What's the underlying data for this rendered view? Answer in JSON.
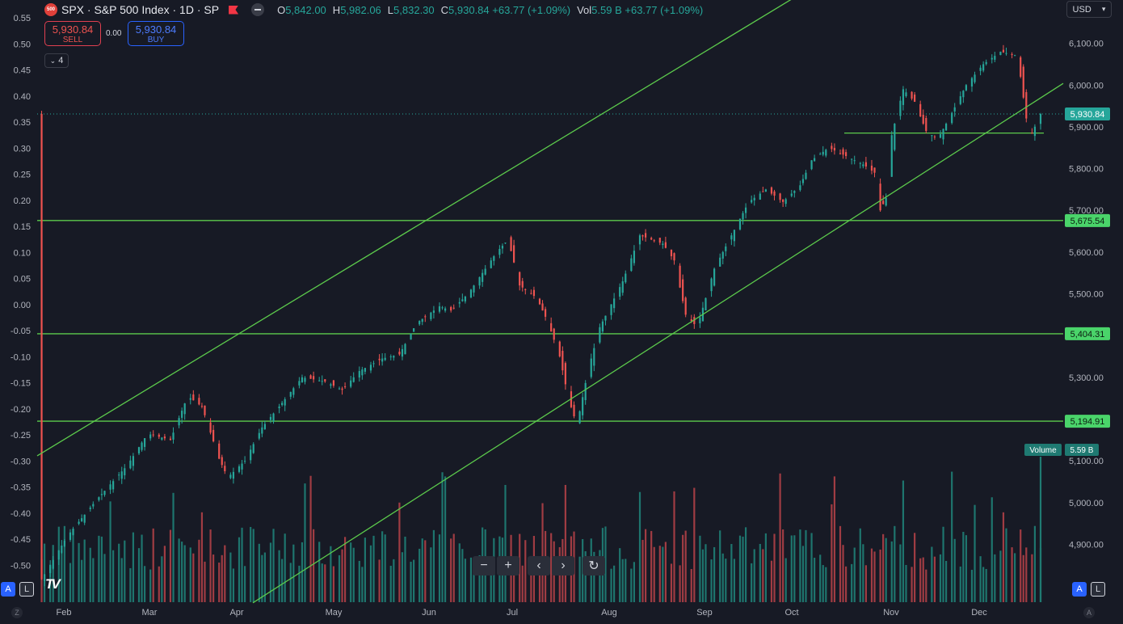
{
  "header": {
    "logo_text": "500",
    "title": "SPX · S&P 500 Index · 1D · SP",
    "ohlc": [
      {
        "label": "O",
        "value": "5,842.00"
      },
      {
        "label": "H",
        "value": "5,982.06"
      },
      {
        "label": "L",
        "value": "5,832.30"
      },
      {
        "label": "C",
        "value": "5,930.84 +63.77 (+1.09%)"
      },
      {
        "label": "Vol",
        "value": "5.59 B +63.77 (+1.09%)"
      }
    ]
  },
  "trade": {
    "sell_price": "5,930.84",
    "sell_label": "SELL",
    "spread": "0.00",
    "buy_price": "5,930.84",
    "buy_label": "BUY"
  },
  "indicator_count": "4",
  "currency": "USD",
  "scale_buttons": {
    "auto": "A",
    "log": "L"
  },
  "corner": {
    "left": "Z",
    "right": "A"
  },
  "zoom_controls": [
    "−",
    "+",
    "‹",
    "›",
    "↻"
  ],
  "colors": {
    "bg": "#171a25",
    "up": "#26a69a",
    "down": "#ef5350",
    "line": "#5ccb4c",
    "label_bg": "#4ad46a"
  },
  "chart_data": {
    "type": "candlestick",
    "symbol": "SPX",
    "timeframe": "1D",
    "x_labels": [
      "Feb",
      "Mar",
      "Apr",
      "May",
      "Jun",
      "Jul",
      "Aug",
      "Sep",
      "Oct",
      "Nov",
      "Dec"
    ],
    "right_axis": {
      "ticks": [
        4900,
        5000,
        5100,
        5200,
        5300,
        5400,
        5500,
        5600,
        5700,
        5800,
        5900,
        6000,
        6100
      ]
    },
    "left_axis": {
      "ticks": [
        -0.5,
        -0.45,
        -0.4,
        -0.35,
        -0.3,
        -0.25,
        -0.2,
        -0.15,
        -0.1,
        -0.05,
        0.0,
        0.05,
        0.1,
        0.15,
        0.2,
        0.25,
        0.3,
        0.35,
        0.4,
        0.45,
        0.5,
        0.55
      ]
    },
    "last_price_label": "5,930.84",
    "last_price": 5930.84,
    "levels": [
      {
        "price": 5675.54,
        "label": "5,675.54"
      },
      {
        "price": 5404.31,
        "label": "5,404.31"
      },
      {
        "price": 5194.91,
        "label": "5,194.91"
      }
    ],
    "short_level": {
      "price": 5885,
      "from": "Oct",
      "to": "Dec"
    },
    "channel": {
      "upper": [
        {
          "x": "Jan",
          "price": 5112
        },
        {
          "x": "Nov",
          "price": 6350
        }
      ],
      "lower": [
        {
          "x": "Apr",
          "price": 4735
        },
        {
          "x": "Dec",
          "price": 5875
        }
      ]
    },
    "volume_label": "Volume",
    "volume_value": "5.59 B",
    "price_path": [
      [
        0,
        4805
      ],
      [
        10,
        4920
      ],
      [
        20,
        5005
      ],
      [
        31,
        5090
      ],
      [
        38,
        5165
      ],
      [
        46,
        5150
      ],
      [
        52,
        5255
      ],
      [
        57,
        5230
      ],
      [
        63,
        5105
      ],
      [
        66,
        5060
      ],
      [
        72,
        5100
      ],
      [
        78,
        5180
      ],
      [
        84,
        5230
      ],
      [
        92,
        5300
      ],
      [
        100,
        5290
      ],
      [
        106,
        5270
      ],
      [
        112,
        5315
      ],
      [
        120,
        5345
      ],
      [
        126,
        5355
      ],
      [
        132,
        5430
      ],
      [
        140,
        5470
      ],
      [
        144,
        5460
      ],
      [
        150,
        5500
      ],
      [
        156,
        5560
      ],
      [
        160,
        5600
      ],
      [
        164,
        5630
      ],
      [
        168,
        5520
      ],
      [
        174,
        5490
      ],
      [
        178,
        5430
      ],
      [
        182,
        5350
      ],
      [
        185,
        5250
      ],
      [
        188,
        5185
      ],
      [
        192,
        5320
      ],
      [
        196,
        5420
      ],
      [
        204,
        5530
      ],
      [
        210,
        5640
      ],
      [
        218,
        5620
      ],
      [
        222,
        5580
      ],
      [
        226,
        5450
      ],
      [
        230,
        5420
      ],
      [
        236,
        5560
      ],
      [
        242,
        5640
      ],
      [
        248,
        5720
      ],
      [
        254,
        5750
      ],
      [
        260,
        5720
      ],
      [
        266,
        5760
      ],
      [
        270,
        5820
      ],
      [
        276,
        5850
      ],
      [
        282,
        5830
      ],
      [
        288,
        5810
      ],
      [
        292,
        5790
      ],
      [
        294,
        5700
      ],
      [
        296,
        5730
      ],
      [
        298,
        5880
      ],
      [
        302,
        5990
      ],
      [
        306,
        5960
      ],
      [
        310,
        5890
      ],
      [
        314,
        5870
      ],
      [
        318,
        5920
      ],
      [
        324,
        6000
      ],
      [
        330,
        6050
      ],
      [
        336,
        6080
      ],
      [
        342,
        6070
      ],
      [
        344,
        5970
      ],
      [
        346,
        5870
      ],
      [
        350,
        5930.84
      ]
    ]
  }
}
